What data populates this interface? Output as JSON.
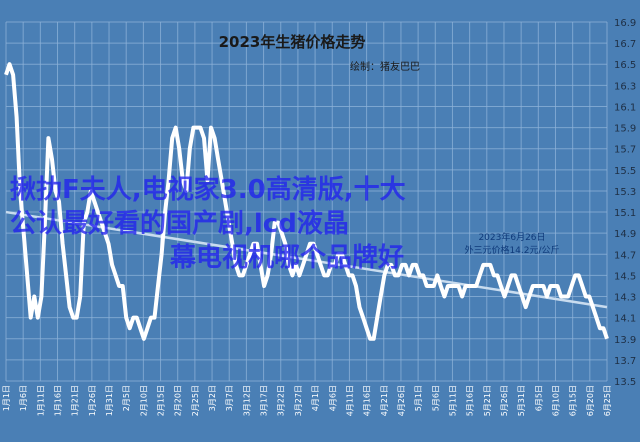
{
  "chart_data": {
    "type": "line",
    "title": "2023年生猪价格走势",
    "subtitle": "绘制：猪友巴巴",
    "annotation": [
      "2023年6月26日",
      "外三元价格14.2元/公斤"
    ],
    "ylim": [
      13.5,
      16.9
    ],
    "yticks": [
      "13.5",
      "13.7",
      "13.9",
      "14.1",
      "14.3",
      "14.5",
      "14.7",
      "14.9",
      "15.1",
      "15.3",
      "15.5",
      "15.7",
      "15.9",
      "16.1",
      "16.3",
      "16.5",
      "16.7",
      "16.9"
    ],
    "xticks": [
      "1月1日",
      "1月6日",
      "1月11日",
      "1月16日",
      "1月21日",
      "1月26日",
      "1月31日",
      "2月5日",
      "2月10日",
      "2月15日",
      "2月20日",
      "2月25日",
      "3月2日",
      "3月7日",
      "3月12日",
      "3月17日",
      "3月22日",
      "3月27日",
      "4月1日",
      "4月6日",
      "4月11日",
      "4月16日",
      "4月21日",
      "4月26日",
      "5月1日",
      "5月6日",
      "5月11日",
      "5月16日",
      "5月21日",
      "5月26日",
      "5月31日",
      "6月5日",
      "6月10日",
      "6月15日",
      "6月20日",
      "6月25日"
    ],
    "series": [
      {
        "values": [
          16.4,
          16.5,
          16.4,
          16.0,
          15.3,
          14.9,
          14.5,
          14.1,
          14.3,
          14.1,
          14.3,
          15.0,
          15.8,
          15.6,
          15.3,
          15.2,
          14.8,
          14.5,
          14.2,
          14.1,
          14.1,
          14.3,
          15.0,
          15.1,
          15.3,
          15.2,
          15.1,
          15.0,
          14.9,
          14.8,
          14.6,
          14.5,
          14.4,
          14.4,
          14.1,
          14.0,
          14.1,
          14.1,
          14.0,
          13.9,
          14.0,
          14.1,
          14.1,
          14.4,
          14.7,
          15.1,
          15.4,
          15.8,
          15.9,
          15.7,
          15.4,
          15.3,
          15.7,
          15.9,
          15.9,
          15.9,
          15.8,
          15.4,
          15.9,
          15.8,
          15.6,
          15.4,
          15.2,
          15.0,
          14.8,
          14.6,
          14.5,
          14.5,
          14.6,
          14.7,
          14.8,
          14.8,
          14.6,
          14.4,
          14.5,
          14.7,
          15.0,
          15.0,
          14.9,
          14.8,
          14.6,
          14.5,
          14.6,
          14.5,
          14.6,
          14.7,
          14.8,
          14.8,
          14.7,
          14.6,
          14.5,
          14.5,
          14.6,
          14.6,
          14.7,
          14.7,
          14.6,
          14.5,
          14.5,
          14.4,
          14.2,
          14.1,
          14.0,
          13.9,
          13.9,
          14.1,
          14.3,
          14.5,
          14.6,
          14.6,
          14.5,
          14.5,
          14.6,
          14.6,
          14.5,
          14.6,
          14.6,
          14.5,
          14.5,
          14.4,
          14.4,
          14.4,
          14.5,
          14.4,
          14.3,
          14.4,
          14.4,
          14.4,
          14.4,
          14.3,
          14.4,
          14.4,
          14.4,
          14.4,
          14.5,
          14.6,
          14.6,
          14.6,
          14.5,
          14.5,
          14.4,
          14.3,
          14.4,
          14.5,
          14.5,
          14.4,
          14.3,
          14.2,
          14.3,
          14.4,
          14.4,
          14.4,
          14.4,
          14.3,
          14.4,
          14.4,
          14.4,
          14.3,
          14.3,
          14.3,
          14.4,
          14.5,
          14.5,
          14.4,
          14.3,
          14.3,
          14.2,
          14.1,
          14.0,
          14.0,
          13.9
        ]
      }
    ],
    "trendline": [
      15.1,
      14.2
    ]
  },
  "watermark": [
    "揪扐F夫人,电视家3.0高清版,十大",
    "公认最好看的国产剧,lcd液晶",
    "幕电视机哪个品牌好"
  ],
  "colors": {
    "background": "#4a7fb5",
    "line": "#ffffff",
    "trend": "#c9dcef",
    "grid": "#8fb3d9"
  }
}
